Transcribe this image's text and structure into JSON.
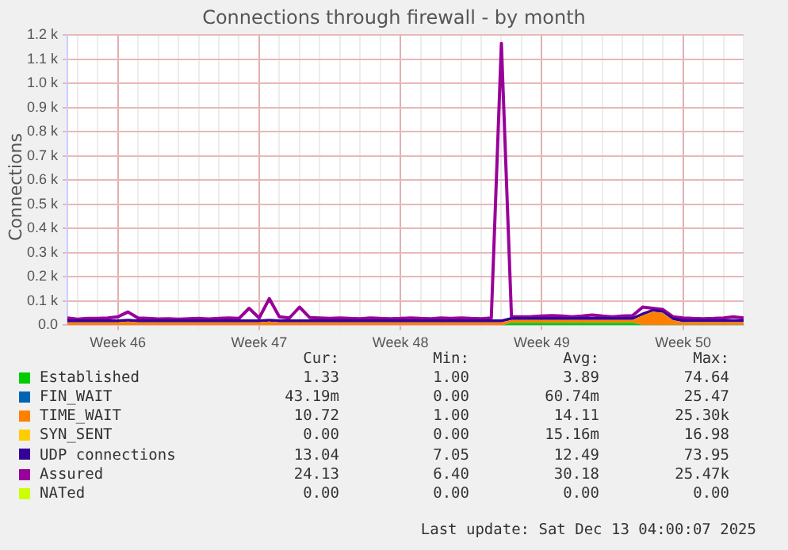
{
  "chart_data": {
    "type": "area",
    "title": "Connections through firewall - by month",
    "ylabel": "Connections",
    "categories": [
      null,
      null,
      null,
      null,
      null,
      "Week 46",
      null,
      null,
      null,
      null,
      null,
      null,
      null,
      null,
      null,
      null,
      null,
      null,
      null,
      "Week 47",
      null,
      null,
      null,
      null,
      null,
      null,
      null,
      null,
      null,
      null,
      null,
      null,
      null,
      "Week 48",
      null,
      null,
      null,
      null,
      null,
      null,
      null,
      null,
      null,
      null,
      null,
      null,
      null,
      "Week 49",
      null,
      null,
      null,
      null,
      null,
      null,
      null,
      null,
      null,
      null,
      null,
      null,
      null,
      "Week 50",
      null,
      null,
      null,
      null,
      null,
      null
    ],
    "ylim": [
      0,
      1200
    ],
    "yticks": [
      {
        "value": 0,
        "label": "0.0"
      },
      {
        "value": 100,
        "label": "0.1 k"
      },
      {
        "value": 200,
        "label": "0.2 k"
      },
      {
        "value": 300,
        "label": "0.3 k"
      },
      {
        "value": 400,
        "label": "0.4 k"
      },
      {
        "value": 500,
        "label": "0.5 k"
      },
      {
        "value": 600,
        "label": "0.6 k"
      },
      {
        "value": 700,
        "label": "0.7 k"
      },
      {
        "value": 800,
        "label": "0.8 k"
      },
      {
        "value": 900,
        "label": "0.9 k"
      },
      {
        "value": 1000,
        "label": "1.0 k"
      },
      {
        "value": 1100,
        "label": "1.1 k"
      },
      {
        "value": 1200,
        "label": "1.2 k"
      }
    ],
    "stacked": true,
    "grid": true,
    "legend": "bottom",
    "series": [
      {
        "name": "Established",
        "color": "#00cc00",
        "values": [
          0,
          0,
          0,
          0,
          0,
          0,
          0,
          0,
          0,
          0,
          0,
          0,
          0,
          0,
          0,
          0,
          0,
          0,
          0,
          0,
          0,
          0,
          0,
          0,
          0,
          0,
          0,
          0,
          0,
          0,
          0,
          0,
          0,
          0,
          0,
          0,
          0,
          0,
          0,
          0,
          0,
          0,
          0,
          0,
          10,
          10,
          10,
          10,
          10,
          10,
          10,
          10,
          10,
          10,
          10,
          10,
          10,
          1,
          1,
          1,
          1,
          1,
          1,
          1,
          1,
          1,
          1,
          1
        ]
      },
      {
        "name": "FIN_WAIT",
        "color": "#0066b3",
        "values": [
          null,
          null,
          null,
          null,
          null,
          null,
          null,
          null,
          null,
          null,
          null,
          null,
          null,
          null,
          null,
          null,
          null,
          null,
          null,
          null,
          null,
          null,
          null,
          null,
          null,
          null,
          null,
          null,
          null,
          null,
          null,
          null,
          null,
          null,
          null,
          null,
          null,
          null,
          null,
          null,
          null,
          null,
          null,
          null,
          null,
          null,
          null,
          null,
          null,
          null,
          null,
          null,
          null,
          null,
          null,
          null,
          null,
          null,
          null,
          null,
          null,
          null,
          null,
          null,
          null,
          null,
          null,
          null
        ]
      },
      {
        "name": "TIME_WAIT",
        "color": "#ff8000",
        "values": [
          12,
          12,
          12,
          12,
          12,
          12,
          15,
          12,
          12,
          12,
          12,
          12,
          12,
          12,
          12,
          12,
          12,
          12,
          12,
          12,
          15,
          12,
          12,
          12,
          12,
          12,
          12,
          12,
          12,
          12,
          12,
          12,
          12,
          12,
          12,
          12,
          12,
          12,
          12,
          12,
          12,
          12,
          12,
          12,
          12,
          12,
          12,
          12,
          12,
          12,
          12,
          12,
          12,
          12,
          12,
          12,
          12,
          40,
          55,
          50,
          20,
          12,
          12,
          12,
          12,
          12,
          12,
          12
        ]
      },
      {
        "name": "SYN_SENT",
        "color": "#ffcc00",
        "values": [
          null,
          null,
          null,
          null,
          null,
          null,
          null,
          null,
          null,
          null,
          null,
          null,
          null,
          null,
          null,
          null,
          null,
          null,
          null,
          null,
          null,
          null,
          null,
          null,
          null,
          null,
          null,
          null,
          null,
          null,
          null,
          null,
          null,
          null,
          null,
          null,
          null,
          null,
          null,
          null,
          null,
          null,
          null,
          null,
          null,
          null,
          null,
          null,
          null,
          null,
          null,
          null,
          null,
          null,
          null,
          null,
          null,
          null,
          null,
          null,
          null,
          null,
          null,
          null,
          null,
          null,
          null,
          null
        ]
      },
      {
        "name": "UDP connections",
        "color": "#330099",
        "values": [
          12,
          12,
          12,
          12,
          12,
          12,
          12,
          12,
          12,
          12,
          12,
          12,
          12,
          12,
          12,
          12,
          12,
          12,
          12,
          12,
          12,
          12,
          12,
          12,
          12,
          12,
          12,
          12,
          12,
          12,
          12,
          12,
          12,
          12,
          12,
          12,
          12,
          12,
          12,
          12,
          12,
          12,
          12,
          12,
          12,
          12,
          12,
          12,
          12,
          12,
          12,
          12,
          12,
          12,
          12,
          12,
          12,
          12,
          12,
          12,
          12,
          12,
          12,
          12,
          12,
          12,
          12,
          12
        ]
      },
      {
        "name": "Assured",
        "color": "#990099",
        "type": "line",
        "values": [
          30,
          25,
          28,
          28,
          30,
          35,
          55,
          30,
          28,
          26,
          27,
          25,
          27,
          28,
          26,
          28,
          30,
          28,
          70,
          30,
          110,
          35,
          30,
          75,
          32,
          30,
          28,
          30,
          28,
          27,
          30,
          28,
          27,
          28,
          30,
          28,
          27,
          30,
          28,
          30,
          28,
          27,
          30,
          1165,
          35,
          35,
          36,
          38,
          40,
          38,
          35,
          38,
          42,
          38,
          35,
          38,
          40,
          75,
          70,
          65,
          35,
          30,
          28,
          27,
          28,
          30,
          35,
          30
        ]
      },
      {
        "name": "NATed",
        "color": "#ccff00",
        "type": "line",
        "values": [
          null,
          null,
          null,
          null,
          null,
          null,
          null,
          null,
          null,
          null,
          null,
          null,
          null,
          null,
          null,
          null,
          null,
          null,
          null,
          null,
          null,
          null,
          null,
          null,
          null,
          null,
          null,
          null,
          null,
          null,
          null,
          null,
          null,
          null,
          null,
          null,
          null,
          null,
          null,
          null,
          null,
          null,
          null,
          null,
          null,
          null,
          null,
          null,
          null,
          null,
          null,
          null,
          null,
          null,
          null,
          null,
          null,
          null,
          null,
          null,
          null,
          null,
          null,
          null,
          null,
          null,
          null,
          null
        ]
      }
    ],
    "annotations": [
      "Cur:",
      "Min:",
      "Avg:",
      "Max:",
      "1.33",
      "1.00",
      "3.89",
      "74.64",
      "43.19m",
      "0.00",
      "60.74m",
      "25.47",
      "10.72",
      "1.00",
      "14.11",
      "25.30k",
      "0.00",
      "0.00",
      "15.16m",
      "16.98",
      "13.04",
      "7.05",
      "12.49",
      "73.95",
      "24.13",
      "6.40",
      "30.18",
      "25.47k",
      "0.00",
      "0.00",
      "0.00",
      "0.00",
      "Last update: Sat Dec 13 04:00:07 2025"
    ]
  }
}
